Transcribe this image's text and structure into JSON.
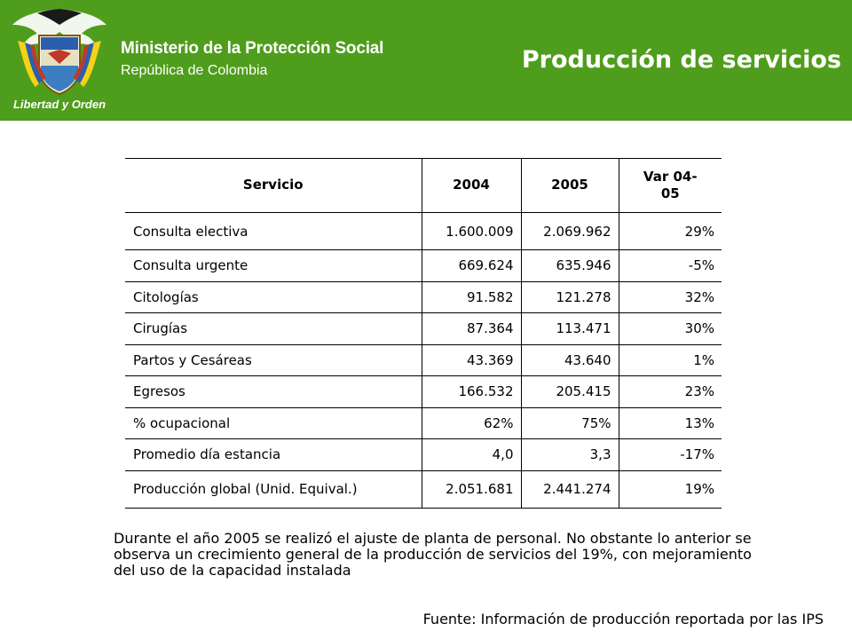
{
  "header": {
    "seal_text": "Libertad y Orden",
    "ministry": "Ministerio de la Protección Social",
    "republic": "República de Colombia",
    "title": "Producción de servicios",
    "colors": {
      "background": "#4f9d1c",
      "text": "#ffffff"
    }
  },
  "table": {
    "headers": [
      "Servicio",
      "2004",
      "2005",
      "Var 04-05"
    ],
    "rows": [
      [
        "Consulta electiva",
        "1.600.009",
        "2.069.962",
        "29%"
      ],
      [
        "Consulta urgente",
        "669.624",
        "635.946",
        "-5%"
      ],
      [
        "Citologías",
        "91.582",
        "121.278",
        "32%"
      ],
      [
        "Cirugías",
        "87.364",
        "113.471",
        "30%"
      ],
      [
        "Partos y Cesáreas",
        "43.369",
        "43.640",
        "1%"
      ],
      [
        "Egresos",
        "166.532",
        "205.415",
        "23%"
      ],
      [
        "% ocupacional",
        "62%",
        "75%",
        "13%"
      ],
      [
        "Promedio día estancia",
        "4,0",
        "3,3",
        "-17%"
      ],
      [
        "Producción global (Unid. Equival.)",
        "2.051.681",
        "2.441.274",
        "19%"
      ]
    ]
  },
  "note": "Durante el año 2005 se realizó  el ajuste de planta de personal. No obstante lo anterior se observa un crecimiento general de la producción de servicios del 19%, con mejoramiento del uso de la capacidad instalada",
  "source": "Fuente: Información de producción reportada por las IPS"
}
